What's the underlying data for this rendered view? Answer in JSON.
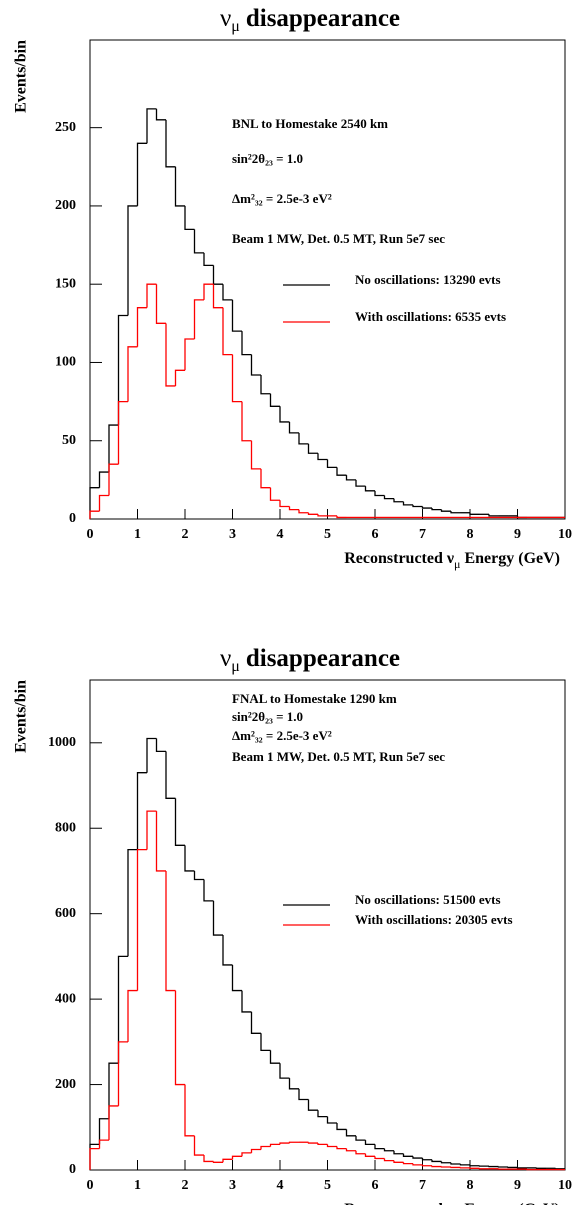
{
  "chart_data": [
    {
      "type": "histogram",
      "title": "ν",
      "title_sub": "μ",
      "title_rest": "disappearance",
      "xlabel": "Reconstructed ν",
      "xlabel_sub": "μ",
      "xlabel_rest": "Energy (GeV)",
      "ylabel": "Events/bin",
      "annotations": [
        "BNL to Homestake  2540 km",
        "sin²2θ₂₃ = 1.0",
        "Δm²₃₂ = 2.5e-3 eV²",
        "Beam 1 MW, Det. 0.5 MT, Run 5e7 sec"
      ],
      "bins": [
        0,
        0.2,
        0.4,
        0.6,
        0.8,
        1,
        1.2,
        1.4,
        1.6,
        1.8,
        2,
        2.2,
        2.4,
        2.6,
        2.8,
        3,
        3.2,
        3.4,
        3.6,
        3.8,
        4,
        4.2,
        4.4,
        4.6,
        4.8,
        5,
        5.2,
        5.4,
        5.6,
        5.8,
        6,
        6.2,
        6.4,
        6.6,
        6.8,
        7,
        7.2,
        7.4,
        7.6,
        7.8,
        8,
        8.2,
        8.4,
        8.6,
        8.8,
        9,
        9.2,
        9.4,
        9.6,
        9.8,
        10
      ],
      "series": [
        {
          "name": "No oscillations: 13290 evts",
          "color": "#000000",
          "values": [
            20,
            30,
            60,
            130,
            200,
            240,
            262,
            255,
            225,
            200,
            185,
            170,
            162,
            150,
            140,
            120,
            105,
            92,
            80,
            72,
            62,
            55,
            48,
            42,
            38,
            33,
            28,
            25,
            21,
            18,
            15,
            13,
            11,
            9,
            8,
            7,
            6,
            5,
            4,
            4,
            3,
            3,
            2,
            2,
            2,
            1,
            1,
            1,
            1,
            1
          ]
        },
        {
          "name": "With oscillations: 6535 evts",
          "color": "#ff0000",
          "values": [
            5,
            15,
            35,
            75,
            110,
            135,
            150,
            125,
            85,
            95,
            115,
            140,
            150,
            135,
            105,
            75,
            50,
            32,
            20,
            12,
            8,
            6,
            4,
            3,
            2,
            2,
            1,
            1,
            1,
            1,
            1,
            1,
            1,
            1,
            1,
            1,
            1,
            1,
            1,
            1,
            1,
            1,
            1,
            1,
            1,
            1,
            1,
            1,
            1,
            1
          ]
        }
      ],
      "xlim": [
        0,
        10
      ],
      "ylim": [
        0,
        306
      ],
      "xticks": [
        0,
        1,
        2,
        3,
        4,
        5,
        6,
        7,
        8,
        9,
        10
      ],
      "yticks": [
        0,
        50,
        100,
        150,
        200,
        250
      ]
    },
    {
      "type": "histogram",
      "title": "ν",
      "title_sub": "μ",
      "title_rest": "disappearance",
      "xlabel": "Reconstructed ν",
      "xlabel_sub": "μ",
      "xlabel_rest": "Energy (GeV)",
      "ylabel": "Events/bin",
      "annotations": [
        "FNAL to Homestake  1290 km",
        "sin²2θ₂₃ = 1.0",
        "Δm²₃₂ = 2.5e-3 eV²",
        "Beam 1 MW, Det. 0.5 MT, Run 5e7 sec"
      ],
      "bins": [
        0,
        0.2,
        0.4,
        0.6,
        0.8,
        1,
        1.2,
        1.4,
        1.6,
        1.8,
        2,
        2.2,
        2.4,
        2.6,
        2.8,
        3,
        3.2,
        3.4,
        3.6,
        3.8,
        4,
        4.2,
        4.4,
        4.6,
        4.8,
        5,
        5.2,
        5.4,
        5.6,
        5.8,
        6,
        6.2,
        6.4,
        6.6,
        6.8,
        7,
        7.2,
        7.4,
        7.6,
        7.8,
        8,
        8.2,
        8.4,
        8.6,
        8.8,
        9,
        9.2,
        9.4,
        9.6,
        9.8,
        10
      ],
      "series": [
        {
          "name": "No oscillations: 51500 evts",
          "color": "#000000",
          "values": [
            60,
            120,
            250,
            500,
            750,
            930,
            1010,
            980,
            870,
            760,
            700,
            680,
            630,
            550,
            480,
            420,
            370,
            320,
            280,
            250,
            215,
            190,
            165,
            140,
            125,
            110,
            95,
            80,
            70,
            60,
            50,
            45,
            38,
            32,
            28,
            24,
            20,
            17,
            14,
            12,
            10,
            9,
            8,
            7,
            6,
            5,
            5,
            4,
            4,
            3
          ]
        },
        {
          "name": "With oscillations: 20305 evts",
          "color": "#ff0000",
          "values": [
            50,
            70,
            150,
            300,
            420,
            750,
            840,
            700,
            420,
            200,
            80,
            35,
            20,
            18,
            25,
            32,
            40,
            48,
            55,
            60,
            63,
            65,
            65,
            63,
            60,
            55,
            50,
            45,
            38,
            32,
            27,
            22,
            18,
            15,
            12,
            10,
            8,
            7,
            6,
            5,
            4,
            3,
            3,
            2,
            2,
            2,
            1,
            1,
            1,
            1
          ]
        }
      ],
      "xlim": [
        0,
        10
      ],
      "ylim": [
        0,
        1147
      ],
      "xticks": [
        0,
        1,
        2,
        3,
        4,
        5,
        6,
        7,
        8,
        9,
        10
      ],
      "yticks": [
        0,
        200,
        400,
        600,
        800,
        1000
      ]
    }
  ]
}
